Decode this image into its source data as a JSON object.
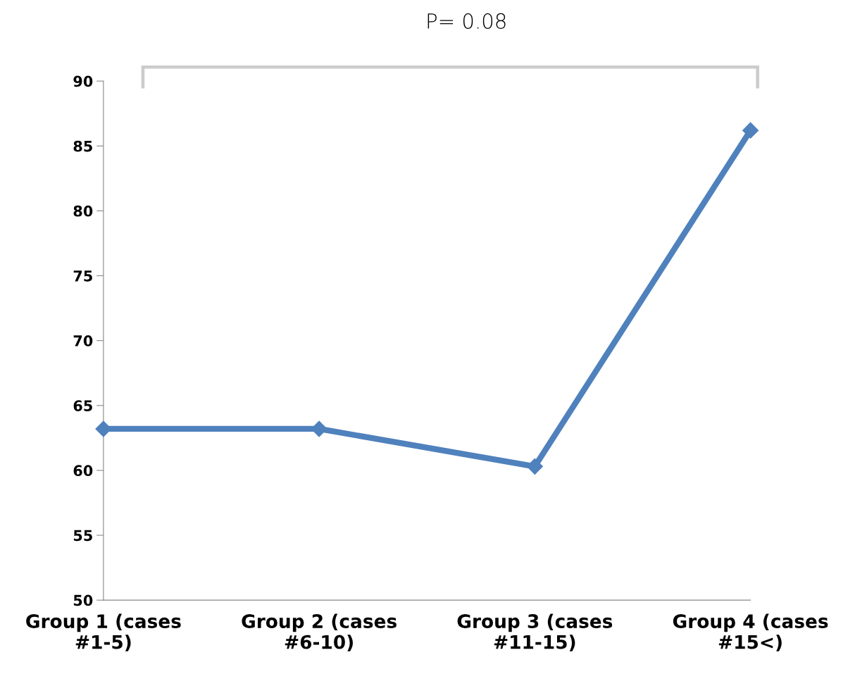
{
  "chart_data": {
    "type": "line",
    "categories": [
      "Group 1 (cases #1-5)",
      "Group 2 (cases #6-10)",
      "Group 3 (cases #11-15)",
      "Group 4 (cases #15<)"
    ],
    "series": [
      {
        "color": "#4f81bd",
        "values": [
          63.2,
          63.2,
          60.3,
          86.2
        ]
      }
    ],
    "ylim": [
      50,
      90
    ],
    "yticks": [
      50,
      55,
      60,
      65,
      70,
      75,
      80,
      85,
      90
    ],
    "marker": "diamond",
    "line_style": "solid",
    "grid": false,
    "legend": false,
    "annotations": [
      "P= 0.08"
    ]
  }
}
